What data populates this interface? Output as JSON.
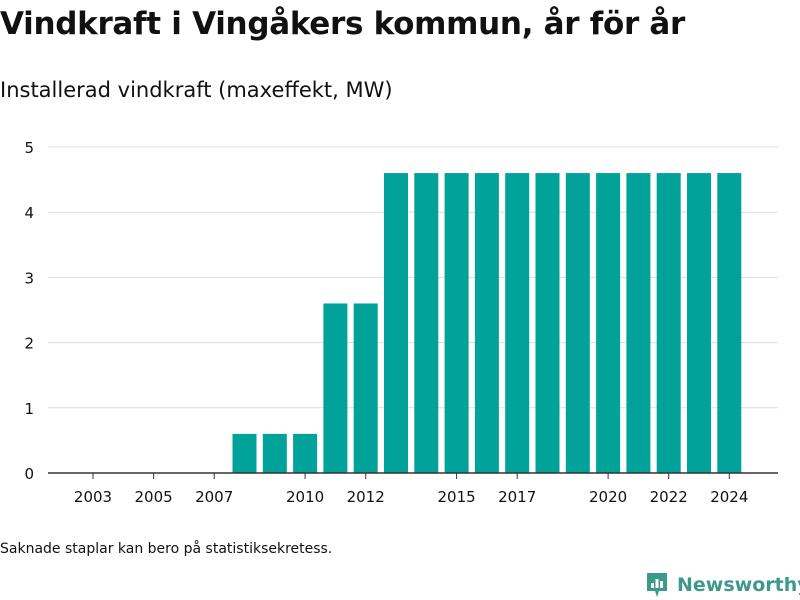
{
  "title": "Vindkraft i Vingåkers kommun, år för år",
  "subtitle": "Installerad vindkraft (maxeffekt, MW)",
  "footnote": "Saknade staplar kan bero på statistiksekretess.",
  "brand": {
    "name": "Newsworthy",
    "icon": "newsworthy-logo-icon",
    "color": "#3d9a8b"
  },
  "colors": {
    "bar": "#00a29a",
    "grid": "#dddddd",
    "axis": "#333333",
    "text": "#111111"
  },
  "chart_data": {
    "type": "bar",
    "title": "Installerad vindkraft (maxeffekt, MW)",
    "xlabel": "",
    "ylabel": "",
    "categories": [
      "2003",
      "2004",
      "2005",
      "2006",
      "2007",
      "2008",
      "2009",
      "2010",
      "2011",
      "2012",
      "2013",
      "2014",
      "2015",
      "2016",
      "2017",
      "2018",
      "2019",
      "2020",
      "2021",
      "2022",
      "2023",
      "2024"
    ],
    "values": [
      0,
      0,
      0,
      0,
      0,
      0.6,
      0.6,
      0.6,
      2.6,
      2.6,
      4.6,
      4.6,
      4.6,
      4.6,
      4.6,
      4.6,
      4.6,
      4.6,
      4.6,
      4.6,
      4.6,
      4.6
    ],
    "x_tick_labels": [
      "2003",
      "2005",
      "2007",
      "2010",
      "2012",
      "2015",
      "2017",
      "2020",
      "2022",
      "2024"
    ],
    "y_ticks": [
      0,
      1,
      2,
      3,
      4,
      5
    ],
    "ylim": [
      0,
      5
    ],
    "grid": true,
    "legend": "none"
  }
}
